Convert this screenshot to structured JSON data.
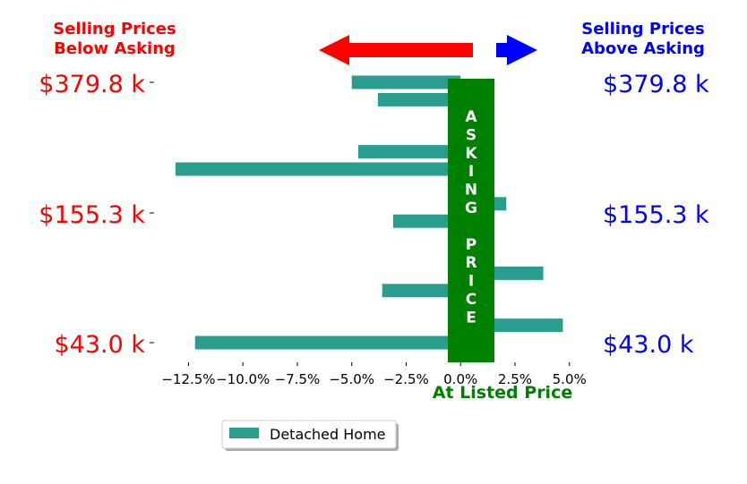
{
  "chart_data": {
    "type": "bar",
    "orientation": "horizontal",
    "series": [
      {
        "name": "Detached Home",
        "values": [
          -12.2,
          4.7,
          1.2,
          -3.6,
          3.8,
          1.2,
          1.2,
          -3.1,
          2.1,
          1.2,
          -13.1,
          -4.7,
          1.2,
          1.5,
          -3.8,
          -5.0
        ]
      }
    ],
    "color": "#2a9d8f",
    "xticks": [
      -12.5,
      -10.0,
      -7.5,
      -5.0,
      -2.5,
      0.0,
      2.5,
      5.0
    ],
    "xtick_labels": [
      "−12.5%",
      "−10.0%",
      "−7.5%",
      "−5.0%",
      "−2.5%",
      "0.0%",
      "2.5%",
      "5.0%"
    ],
    "xlim": [
      -14.0,
      6.0
    ],
    "xlabel": "At Listed Price",
    "y_labels": [
      "$43.0 k",
      "$155.3 k",
      "$379.8 k"
    ],
    "legend_position": "lower-center",
    "grid": false
  },
  "headers": {
    "left": [
      "Selling Prices",
      "Below Asking"
    ],
    "right": [
      "Selling Prices",
      "Above Asking"
    ]
  },
  "band": {
    "letters": [
      "A",
      "S",
      "K",
      "I",
      "N",
      "G",
      "",
      "P",
      "R",
      "I",
      "C",
      "E"
    ],
    "color": "#008000"
  },
  "colors": {
    "below": "#ff0000",
    "above": "#0000ff",
    "band": "#008000"
  }
}
